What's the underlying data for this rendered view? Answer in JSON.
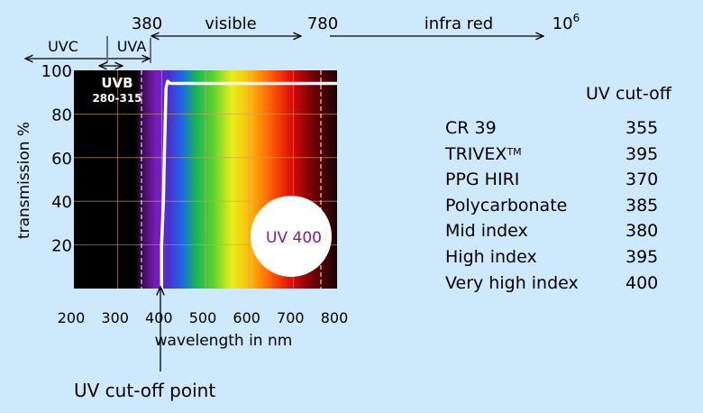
{
  "chart_data": {
    "type": "line",
    "xlabel": "wavelength in nm",
    "ylabel": "transmission %",
    "xlim": [
      200,
      800
    ],
    "ylim": [
      0,
      100
    ],
    "x_ticks": [
      200,
      300,
      400,
      500,
      600,
      700,
      800
    ],
    "y_ticks": [
      20,
      40,
      60,
      80,
      100
    ],
    "grid": true,
    "series": [
      {
        "x": [
          400,
          400,
          402,
          403,
          404,
          405,
          406,
          408,
          410,
          414,
          420,
          800
        ],
        "y": [
          0,
          20,
          30,
          35,
          40,
          50,
          60,
          75,
          92,
          95,
          94,
          94
        ]
      }
    ],
    "regions": {
      "uvc": "UVC",
      "uvb": "UVB",
      "uvb_range": "280-315",
      "uva": "UVA",
      "visible_start": "380",
      "visible": "visible",
      "visible_end": "780",
      "infrared": "infra red",
      "infrared_end_base": "10",
      "infrared_end_exp": "6"
    },
    "badge": "UV 400",
    "annotation": "UV cut-off point",
    "colors": {
      "background": "#cde9fb",
      "curve": "#ffffff",
      "grid": "#d9a04a",
      "badge_text": "#8a1a8a"
    }
  },
  "table": {
    "header": "UV cut-off",
    "rows": [
      {
        "name": "CR 39",
        "tm": "",
        "value": "355"
      },
      {
        "name": "TRIVEX",
        "tm": "TM",
        "value": "395"
      },
      {
        "name": "PPG HIRI",
        "tm": "",
        "value": "370"
      },
      {
        "name": "Polycarbonate",
        "tm": "",
        "value": "385"
      },
      {
        "name": "Mid index",
        "tm": "",
        "value": "380"
      },
      {
        "name": "High index",
        "tm": "",
        "value": "395"
      },
      {
        "name": "Very high index",
        "tm": "",
        "value": "400"
      }
    ]
  }
}
